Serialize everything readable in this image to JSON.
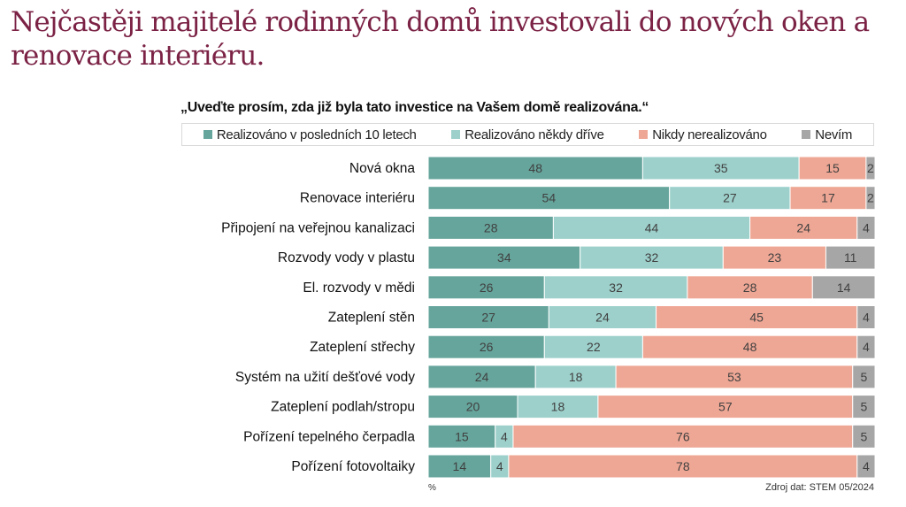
{
  "headline": "Nejčastěji majitelé rodinných domů investovali do nových oken a renovace interiéru.",
  "chart_data": {
    "type": "bar",
    "orientation": "horizontal",
    "stacked": true,
    "title": "„Uveďte prosím, zda již byla tato investice na Vašem domě realizována.“",
    "xlabel": "",
    "ylabel": "",
    "unit_label": "%",
    "source": "Zdroj dat: STEM 05/2024",
    "xlim": [
      0,
      100
    ],
    "grid": false,
    "legend_position": "top",
    "categories": [
      "Nová okna",
      "Renovace interiéru",
      "Připojení na veřejnou kanalizaci",
      "Rozvody vody v plastu",
      "El. rozvody v mědi",
      "Zateplení stěn",
      "Zateplení střechy",
      "Systém na užití dešťové vody",
      "Zateplení podlah/stropu",
      "Pořízení tepelného čerpadla",
      "Pořízení fotovoltaiky"
    ],
    "series": [
      {
        "name": "Realizováno v posledních 10 letech",
        "color": "#66a59c",
        "values": [
          48,
          54,
          28,
          34,
          26,
          27,
          26,
          24,
          20,
          15,
          14
        ]
      },
      {
        "name": "Realizováno někdy dříve",
        "color": "#9dd0cb",
        "values": [
          35,
          27,
          44,
          32,
          32,
          24,
          22,
          18,
          18,
          4,
          4
        ]
      },
      {
        "name": "Nikdy nerealizováno",
        "color": "#efa795",
        "values": [
          15,
          17,
          24,
          23,
          28,
          45,
          48,
          53,
          57,
          76,
          78
        ]
      },
      {
        "name": "Nevím",
        "color": "#a6a6a6",
        "values": [
          2,
          2,
          4,
          11,
          14,
          4,
          4,
          5,
          5,
          5,
          4
        ]
      }
    ]
  }
}
